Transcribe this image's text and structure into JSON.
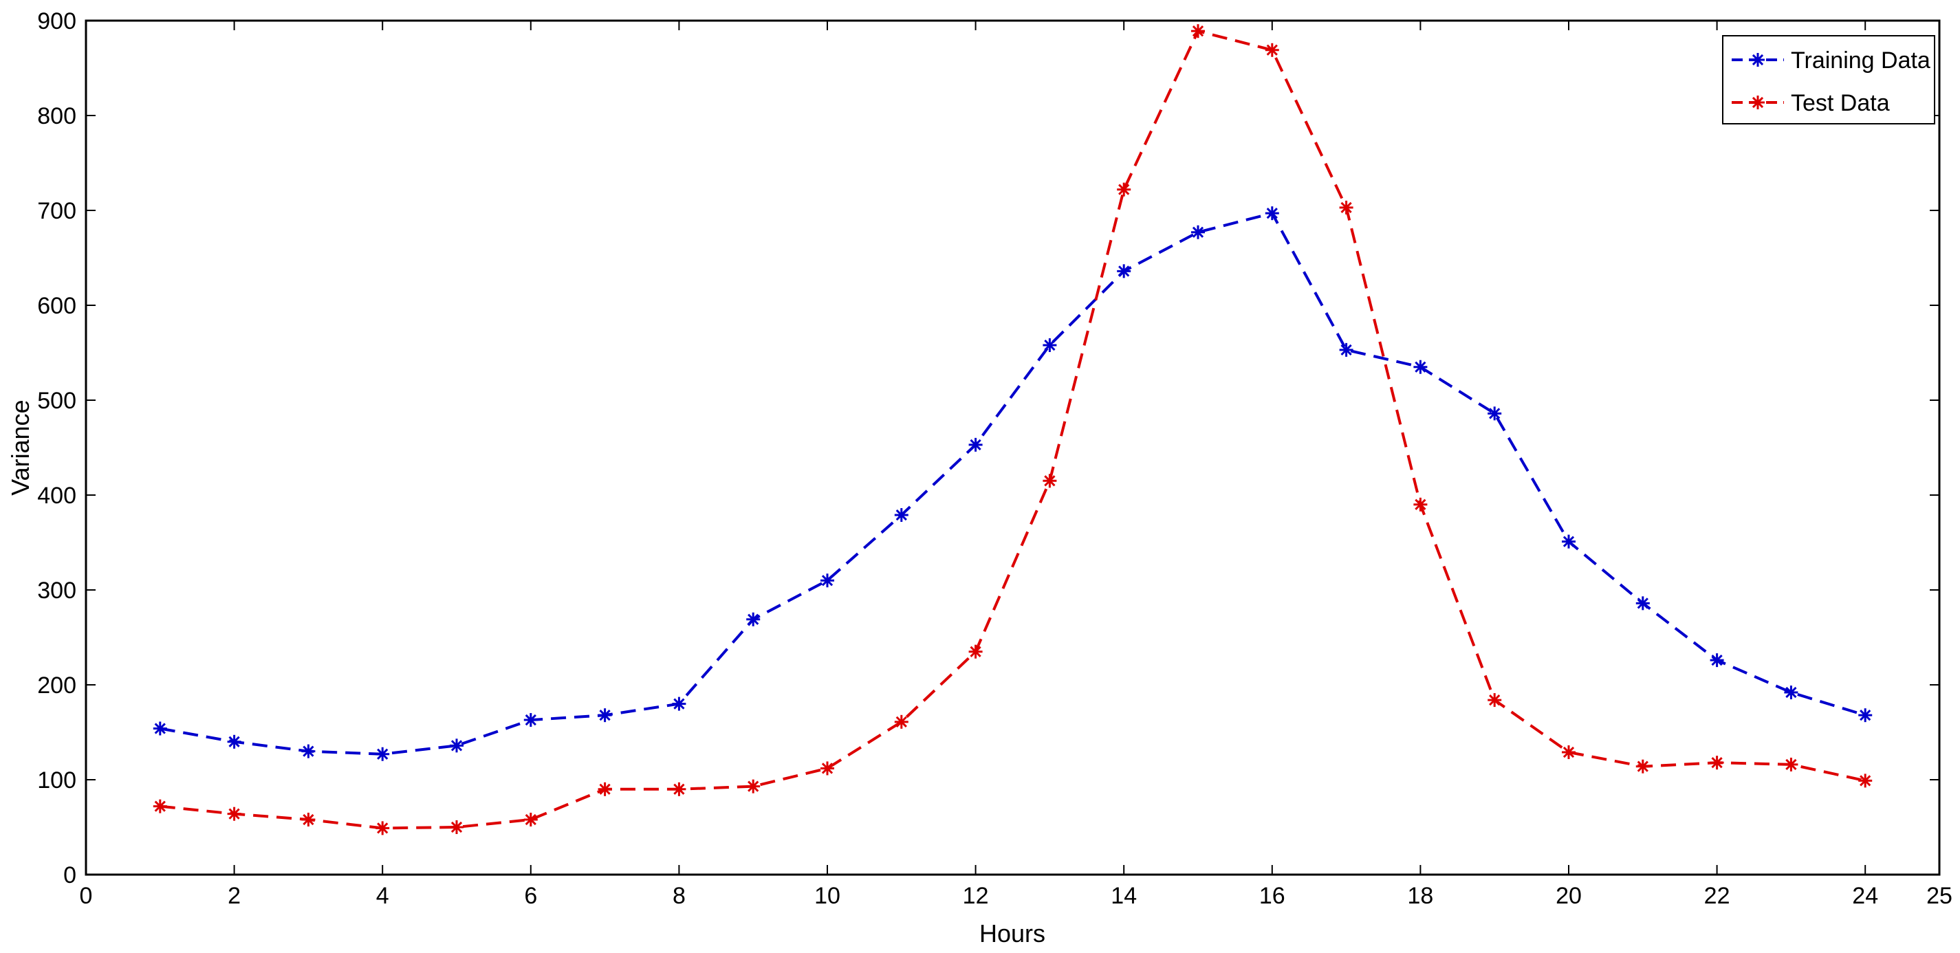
{
  "chart_data": {
    "type": "line",
    "title": "",
    "xlabel": "Hours",
    "ylabel": "Variance",
    "xlim": [
      0,
      25
    ],
    "ylim": [
      0,
      900
    ],
    "xticks": [
      "0",
      "2",
      "4",
      "6",
      "8",
      "10",
      "12",
      "14",
      "16",
      "18",
      "20",
      "22",
      "24",
      "25"
    ],
    "yticks": [
      "0",
      "100",
      "200",
      "300",
      "400",
      "500",
      "600",
      "700",
      "800",
      "900"
    ],
    "grid": false,
    "legend_position": "top-right",
    "x": [
      1,
      2,
      3,
      4,
      5,
      6,
      7,
      8,
      9,
      10,
      11,
      12,
      13,
      14,
      15,
      16,
      17,
      18,
      19,
      20,
      21,
      22,
      23,
      24
    ],
    "series": [
      {
        "name": "Training Data",
        "color": "#0000CC",
        "marker": "asterisk",
        "line_style": "dashed",
        "values": [
          154,
          140,
          130,
          127,
          136,
          163,
          168,
          180,
          269,
          310,
          379,
          453,
          558,
          636,
          677,
          697,
          553,
          535,
          486,
          351,
          286,
          226,
          192,
          168
        ]
      },
      {
        "name": "Test Data",
        "color": "#DD0000",
        "marker": "asterisk",
        "line_style": "dashed",
        "values": [
          72,
          64,
          58,
          49,
          50,
          58,
          90,
          90,
          93,
          112,
          161,
          235,
          415,
          722,
          889,
          869,
          703,
          390,
          184,
          129,
          114,
          118,
          116,
          99
        ]
      }
    ]
  }
}
